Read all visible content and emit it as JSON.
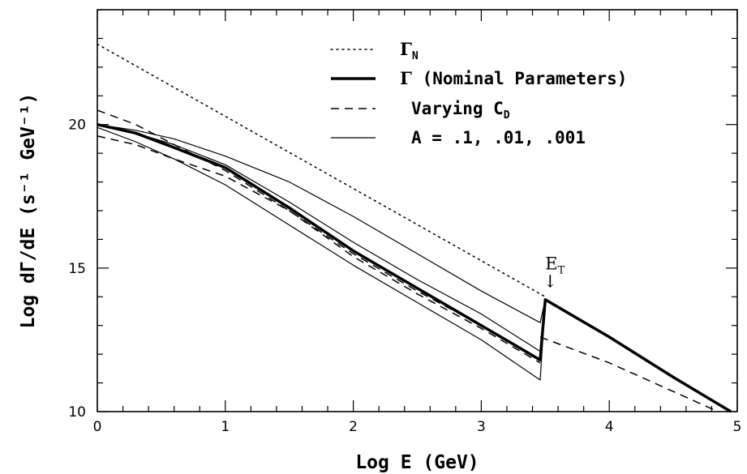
{
  "chart_data": {
    "type": "line",
    "xlabel": "Log E (GeV)",
    "ylabel": "Log dΓ/dE (s⁻¹ GeV⁻¹)",
    "xlim": [
      0,
      5
    ],
    "ylim": [
      10,
      24
    ],
    "x_ticks": [
      "0",
      "1",
      "2",
      "3",
      "4",
      "5"
    ],
    "y_ticks": [
      "10",
      "15",
      "20"
    ],
    "legend_placement": "top-center",
    "legend": [
      {
        "key": "gamma_n",
        "style": "dotted",
        "width": 1.5,
        "base": "Γ",
        "sub": "N",
        "text": ""
      },
      {
        "key": "gamma_nominal",
        "style": "solid",
        "width": 3.5,
        "base": "Γ",
        "sub": "",
        "text": " (Nominal Parameters)"
      },
      {
        "key": "varying_cd",
        "style": "dashed",
        "width": 1.5,
        "base": "",
        "sub": "",
        "text": "Varying C",
        "text_sub": "D"
      },
      {
        "key": "varying_a",
        "style": "solid",
        "width": 1.2,
        "base": "",
        "sub": "",
        "text": "A = .1, .01, .001"
      }
    ],
    "annotation": {
      "base": "E",
      "sub": "T",
      "arrow": "↓",
      "x": 3.5,
      "y": 14.0
    },
    "series": [
      {
        "key": "gamma_n",
        "style": "dotted",
        "width": 1.5,
        "x": [
          0,
          3.5
        ],
        "y": [
          22.8,
          14.0
        ]
      },
      {
        "key": "gamma_nominal",
        "style": "solid",
        "width": 3.5,
        "x": [
          0,
          0.3,
          0.6,
          1.0,
          1.5,
          2.0,
          2.5,
          3.0,
          3.46,
          3.5,
          4.0,
          4.5,
          4.95
        ],
        "y": [
          20.0,
          19.7,
          19.2,
          18.5,
          17.1,
          15.6,
          14.3,
          13.0,
          11.8,
          13.9,
          12.6,
          11.2,
          10.0
        ]
      },
      {
        "key": "varying_cd_upper",
        "style": "dashed",
        "width": 1.5,
        "x": [
          0,
          0.3,
          0.6,
          1.0,
          1.5,
          2.0,
          2.5,
          3.0,
          3.46
        ],
        "y": [
          20.5,
          20.0,
          19.3,
          18.4,
          17.0,
          15.5,
          14.2,
          13.0,
          11.8
        ]
      },
      {
        "key": "varying_cd_lower",
        "style": "dashed",
        "width": 1.5,
        "x": [
          0,
          0.3,
          0.6,
          1.0,
          1.5,
          2.0,
          2.5,
          3.0,
          3.46
        ],
        "y": [
          19.6,
          19.3,
          18.8,
          18.2,
          17.0,
          15.4,
          14.1,
          12.9,
          11.7
        ]
      },
      {
        "key": "varying_cd_high_energy",
        "style": "dashed",
        "width": 1.5,
        "x": [
          3.46,
          4.0,
          4.5,
          4.85
        ],
        "y": [
          12.6,
          11.7,
          10.7,
          10.0
        ]
      },
      {
        "key": "a_0_1",
        "style": "solid",
        "width": 1.2,
        "x": [
          0,
          0.3,
          0.6,
          1.0,
          1.5,
          2.0,
          2.5,
          3.0,
          3.46,
          3.5
        ],
        "y": [
          20.0,
          19.8,
          19.5,
          18.9,
          18.0,
          16.8,
          15.5,
          14.2,
          13.1,
          13.9
        ]
      },
      {
        "key": "a_0_01",
        "style": "solid",
        "width": 1.2,
        "x": [
          0,
          0.3,
          0.6,
          1.0,
          1.5,
          2.0,
          2.5,
          3.0,
          3.46,
          3.5
        ],
        "y": [
          20.0,
          19.7,
          19.3,
          18.6,
          17.3,
          15.9,
          14.6,
          13.4,
          12.1,
          13.9
        ]
      },
      {
        "key": "a_0_001",
        "style": "solid",
        "width": 1.2,
        "x": [
          0,
          0.3,
          0.6,
          1.0,
          1.5,
          2.0,
          2.5,
          3.0,
          3.46,
          3.5
        ],
        "y": [
          19.9,
          19.4,
          18.8,
          17.9,
          16.5,
          15.1,
          13.8,
          12.5,
          11.1,
          13.9
        ]
      }
    ]
  }
}
